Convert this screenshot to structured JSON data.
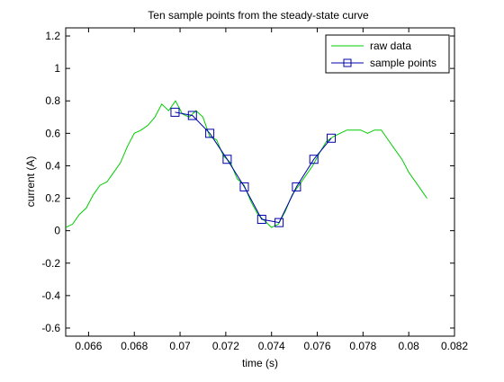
{
  "chart_data": {
    "type": "line",
    "title": "Ten sample points from the steady-state curve",
    "xlabel": "time (s)",
    "ylabel": "current (A)",
    "xlim": [
      0.065,
      0.082
    ],
    "ylim": [
      -0.65,
      1.25
    ],
    "xticks": [
      0.066,
      0.068,
      0.07,
      0.072,
      0.074,
      0.076,
      0.078,
      0.08,
      0.082
    ],
    "xtick_labels": [
      "0.066",
      "0.068",
      "0.07",
      "0.072",
      "0.074",
      "0.076",
      "0.078",
      "0.08",
      "0.082"
    ],
    "yticks": [
      -0.6,
      -0.4,
      -0.2,
      0,
      0.2,
      0.4,
      0.6,
      0.8,
      1,
      1.2
    ],
    "ytick_labels": [
      "-0.6",
      "-0.4",
      "-0.2",
      "0",
      "0.2",
      "0.4",
      "0.6",
      "0.8",
      "1",
      "1.2"
    ],
    "grid": false,
    "legend_position": "top-right",
    "series": [
      {
        "name": "raw data",
        "color": "#00cc00",
        "marker": "none",
        "x": [
          0.065,
          0.0653,
          0.0656,
          0.0659,
          0.0662,
          0.0665,
          0.0668,
          0.0671,
          0.0674,
          0.0677,
          0.068,
          0.0683,
          0.0686,
          0.0689,
          0.0692,
          0.0695,
          0.0698,
          0.0701,
          0.0704,
          0.0707,
          0.071,
          0.0713,
          0.0716,
          0.0719,
          0.0722,
          0.0725,
          0.0728,
          0.0731,
          0.0734,
          0.0737,
          0.074,
          0.0743,
          0.0746,
          0.0749,
          0.0752,
          0.0755,
          0.0758,
          0.0761,
          0.0764,
          0.0767,
          0.077,
          0.0773,
          0.0776,
          0.0779,
          0.0782,
          0.0785,
          0.0788,
          0.0791,
          0.0794,
          0.0797,
          0.08,
          0.0803,
          0.0806,
          0.0808
        ],
        "y": [
          0.02,
          0.04,
          0.1,
          0.14,
          0.22,
          0.28,
          0.3,
          0.36,
          0.42,
          0.52,
          0.6,
          0.62,
          0.65,
          0.7,
          0.78,
          0.74,
          0.8,
          0.72,
          0.7,
          0.74,
          0.7,
          0.58,
          0.56,
          0.46,
          0.42,
          0.32,
          0.28,
          0.18,
          0.1,
          0.06,
          0.02,
          0.04,
          0.12,
          0.22,
          0.28,
          0.34,
          0.4,
          0.48,
          0.55,
          0.58,
          0.6,
          0.62,
          0.62,
          0.62,
          0.6,
          0.62,
          0.62,
          0.56,
          0.5,
          0.44,
          0.36,
          0.3,
          0.24,
          0.2
        ]
      },
      {
        "name": "sample points",
        "color": "#0000aa",
        "marker": "square",
        "x": [
          0.06978,
          0.07054,
          0.0713,
          0.07206,
          0.07281,
          0.07357,
          0.07433,
          0.07509,
          0.07585,
          0.07661
        ],
        "y": [
          0.73,
          0.71,
          0.6,
          0.44,
          0.27,
          0.07,
          0.05,
          0.27,
          0.44,
          0.57
        ]
      }
    ]
  }
}
